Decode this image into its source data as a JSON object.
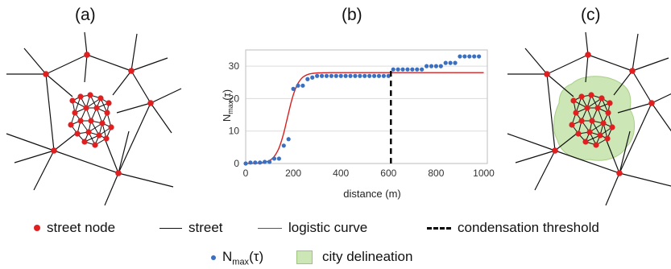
{
  "panels": {
    "a": "(a)",
    "b": "(b)",
    "c": "(c)"
  },
  "colors": {
    "node": "#e02020",
    "street": "#111111",
    "logistic": "#d62020",
    "points": "#3b6fbf",
    "threshold": "#000000",
    "delineation_fill": "#cde6b5",
    "delineation_stroke": "#a9cf8a",
    "grid": "#dcdcdc"
  },
  "chart_data": {
    "type": "scatter",
    "title": "",
    "xlabel": "distance (m)",
    "ylabel": "N_max(τ)",
    "xlim": [
      0,
      1000
    ],
    "ylim": [
      0,
      35
    ],
    "xticks": [
      0,
      200,
      400,
      600,
      800,
      1000
    ],
    "yticks": [
      0,
      10,
      20,
      30
    ],
    "grid": "horizontal",
    "series": [
      {
        "name": "N_max(τ)",
        "kind": "points",
        "x": [
          0,
          20,
          40,
          60,
          80,
          100,
          120,
          140,
          160,
          180,
          200,
          220,
          240,
          260,
          280,
          300,
          320,
          340,
          360,
          380,
          400,
          420,
          440,
          460,
          480,
          500,
          520,
          540,
          560,
          580,
          600,
          620,
          640,
          660,
          680,
          700,
          720,
          740,
          760,
          780,
          800,
          820,
          840,
          860,
          880,
          900,
          920,
          940,
          960,
          980
        ],
        "y": [
          0,
          0.3,
          0.3,
          0.3,
          0.5,
          0.5,
          1.5,
          1.5,
          5.5,
          7.5,
          23,
          24,
          24,
          26,
          26.5,
          27,
          27,
          27,
          27,
          27,
          27,
          27,
          27,
          27,
          27,
          27,
          27,
          27,
          27,
          27,
          27,
          29,
          29,
          29,
          29,
          29,
          29,
          29,
          30,
          30,
          30,
          30,
          31,
          31,
          31,
          33,
          33,
          33,
          33,
          33
        ]
      },
      {
        "name": "logistic curve",
        "kind": "line",
        "K": 28,
        "x0": 175,
        "k": 0.045
      }
    ],
    "annotations": [
      {
        "type": "vline",
        "x": 610,
        "label": "condensation threshold"
      }
    ]
  },
  "legend": {
    "street_node": "street node",
    "street": "street",
    "logistic": "logistic curve",
    "threshold": "condensation threshold",
    "nmax_main": "N",
    "nmax_sub": "max",
    "nmax_arg": "(τ)",
    "city": "city delineation"
  },
  "ylabel_parts": {
    "main": "N",
    "sub": "max",
    "arg": "(τ)"
  }
}
